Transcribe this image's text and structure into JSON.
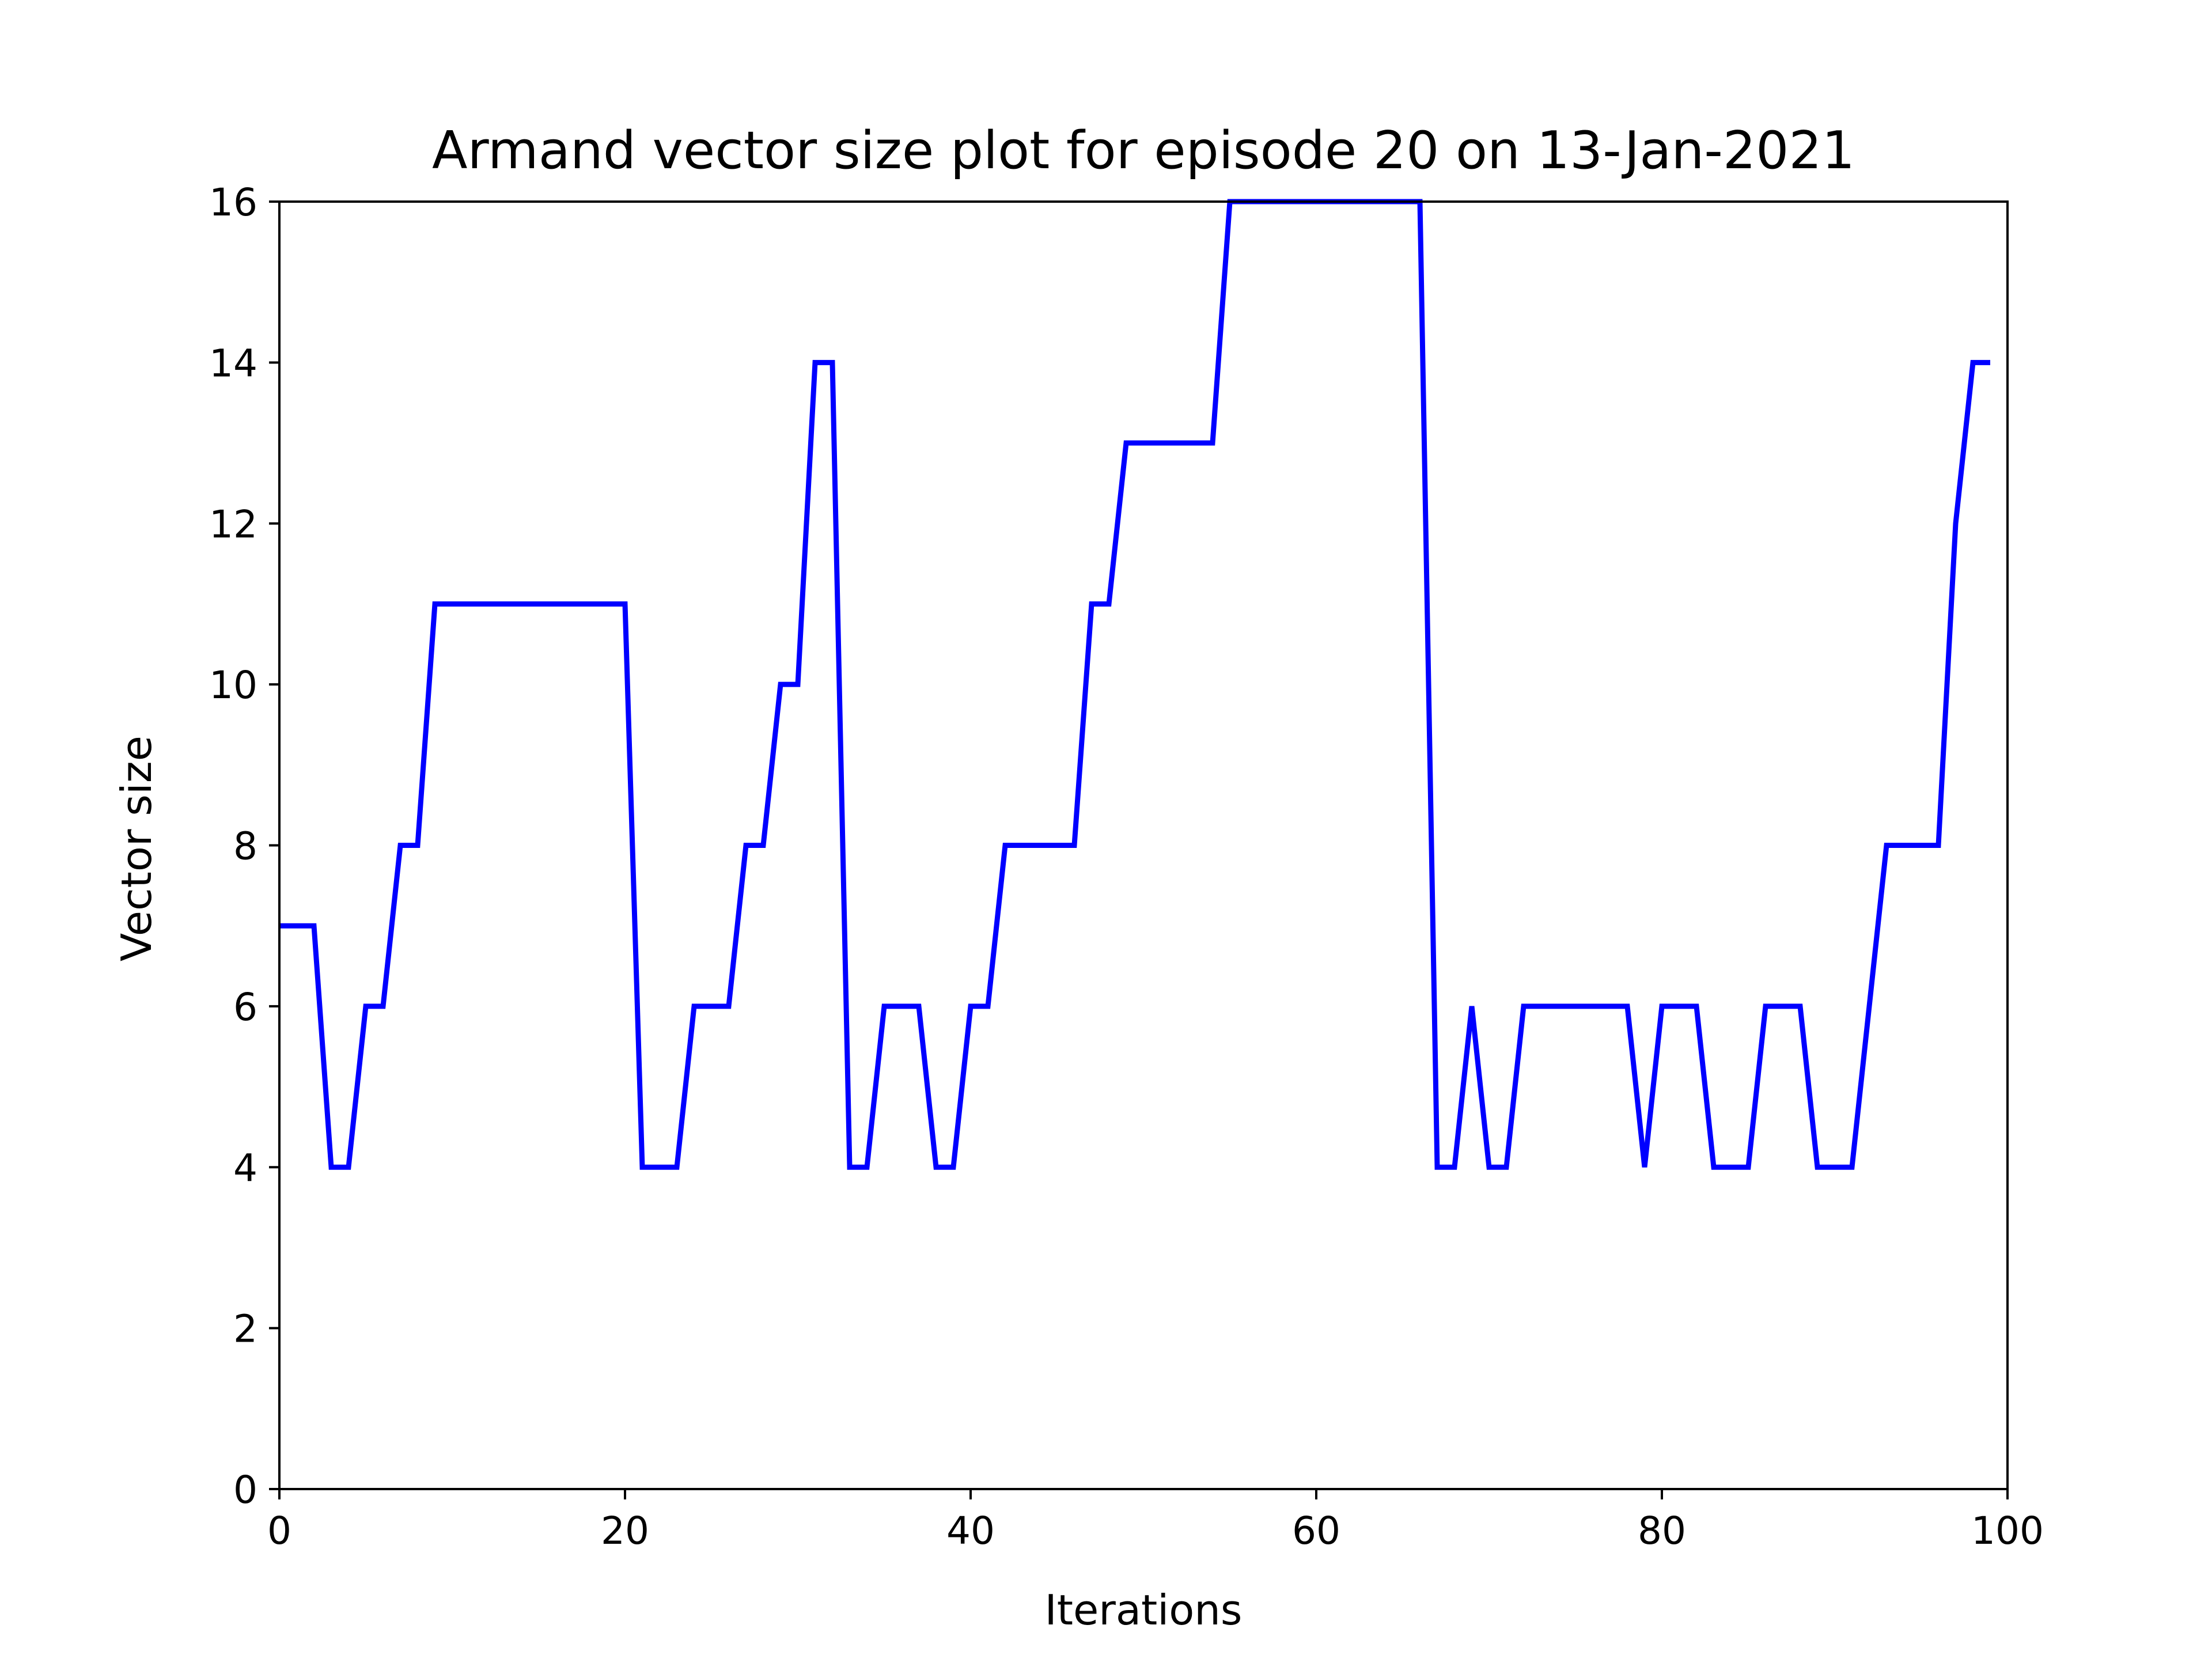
{
  "chart_data": {
    "type": "line",
    "title": "Armand vector size plot for episode 20 on 13-Jan-2021",
    "xlabel": "Iterations",
    "ylabel": "Vector size",
    "xlim": [
      0,
      100
    ],
    "ylim": [
      0,
      16
    ],
    "xticks": [
      "0",
      "20",
      "40",
      "60",
      "80",
      "100"
    ],
    "yticks": [
      "0",
      "2",
      "4",
      "6",
      "8",
      "10",
      "12",
      "14",
      "16"
    ],
    "grid": false,
    "series": [
      {
        "color": "#0000ff",
        "x": [
          0,
          1,
          2,
          3,
          4,
          5,
          6,
          7,
          8,
          9,
          10,
          11,
          12,
          13,
          14,
          15,
          16,
          17,
          18,
          19,
          20,
          21,
          22,
          23,
          24,
          25,
          26,
          27,
          28,
          29,
          30,
          31,
          32,
          33,
          34,
          35,
          36,
          37,
          38,
          39,
          40,
          41,
          42,
          43,
          44,
          45,
          46,
          47,
          48,
          49,
          50,
          51,
          52,
          53,
          54,
          55,
          56,
          57,
          58,
          59,
          60,
          61,
          62,
          63,
          64,
          65,
          66,
          67,
          68,
          69,
          70,
          71,
          72,
          73,
          74,
          75,
          76,
          77,
          78,
          79,
          80,
          81,
          82,
          83,
          84,
          85,
          86,
          87,
          88,
          89,
          90,
          91,
          92,
          93,
          94,
          95,
          96,
          97,
          98,
          99
        ],
        "y": [
          7,
          7,
          7,
          4,
          4,
          6,
          6,
          8,
          8,
          11,
          11,
          11,
          11,
          11,
          11,
          11,
          11,
          11,
          11,
          11,
          11,
          4,
          4,
          4,
          6,
          6,
          6,
          8,
          8,
          10,
          10,
          14,
          14,
          4,
          4,
          6,
          6,
          6,
          4,
          4,
          6,
          6,
          8,
          8,
          8,
          8,
          8,
          11,
          11,
          13,
          13,
          13,
          13,
          13,
          13,
          16,
          16,
          16,
          16,
          16,
          16,
          16,
          16,
          16,
          16,
          16,
          16,
          4,
          4,
          6,
          4,
          4,
          6,
          6,
          6,
          6,
          6,
          6,
          6,
          4,
          6,
          6,
          6,
          4,
          4,
          4,
          6,
          6,
          6,
          4,
          4,
          4,
          6,
          8,
          8,
          8,
          8,
          12,
          14,
          14
        ]
      }
    ]
  }
}
